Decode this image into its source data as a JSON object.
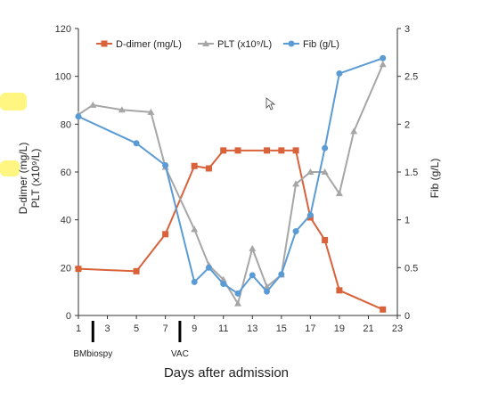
{
  "chart_data": {
    "type": "line",
    "title": "",
    "xlabel": "Days after admission",
    "ylabel_left": "D-dimer (mg/L)\nPLT (x10⁹/L)",
    "ylabel_left_lines": [
      "D-dimer (mg/L)",
      "PLT (x10⁹/L)"
    ],
    "ylabel_right": "Fib (g/L)",
    "xlim": [
      1,
      23
    ],
    "ylim_left": [
      0,
      120
    ],
    "ylim_right": [
      0,
      3
    ],
    "x_ticks": [
      "1",
      "3",
      "5",
      "7",
      "9",
      "11",
      "13",
      "15",
      "17",
      "19",
      "21",
      "23"
    ],
    "y_ticks_left": [
      "0",
      "20",
      "40",
      "60",
      "80",
      "100",
      "120"
    ],
    "y_ticks_right": [
      "0",
      "0.5",
      "1",
      "1.5",
      "2",
      "2.5",
      "3"
    ],
    "grid": false,
    "legend_position": "top",
    "events": [
      {
        "x": 2,
        "label": "BMbiospy"
      },
      {
        "x": 8,
        "label": "VAC"
      }
    ],
    "series": [
      {
        "name": "D-dimer (mg/L)",
        "axis": "left",
        "color": "#d9623b",
        "marker": "square",
        "x": [
          1,
          5,
          7,
          9,
          10,
          11,
          12,
          14,
          15,
          16,
          17,
          18,
          19,
          22
        ],
        "y": [
          19.5,
          18.5,
          34,
          62.5,
          61.5,
          69,
          69,
          69,
          69,
          69,
          41,
          31.5,
          10.5,
          2.5
        ]
      },
      {
        "name": "PLT (x10⁹/L)",
        "axis": "left",
        "color": "#a6a6a6",
        "marker": "triangle",
        "x": [
          1,
          2,
          4,
          6,
          7,
          9,
          10,
          11,
          12,
          13,
          14,
          15,
          16,
          17,
          18,
          19,
          20,
          22
        ],
        "y": [
          84,
          88,
          86,
          85,
          62,
          36,
          21,
          15,
          5,
          28,
          12,
          17,
          55,
          60,
          60,
          51,
          77,
          105
        ]
      },
      {
        "name": "Fib (g/L)",
        "axis": "right",
        "color": "#5b9bd5",
        "marker": "circle",
        "x": [
          1,
          5,
          7,
          9,
          10,
          11,
          12,
          13,
          14,
          15,
          16,
          17,
          18,
          19,
          22
        ],
        "y": [
          2.08,
          1.8,
          1.57,
          0.35,
          0.5,
          0.33,
          0.23,
          0.42,
          0.25,
          0.43,
          0.88,
          1.05,
          1.75,
          2.53,
          2.69
        ]
      }
    ]
  }
}
